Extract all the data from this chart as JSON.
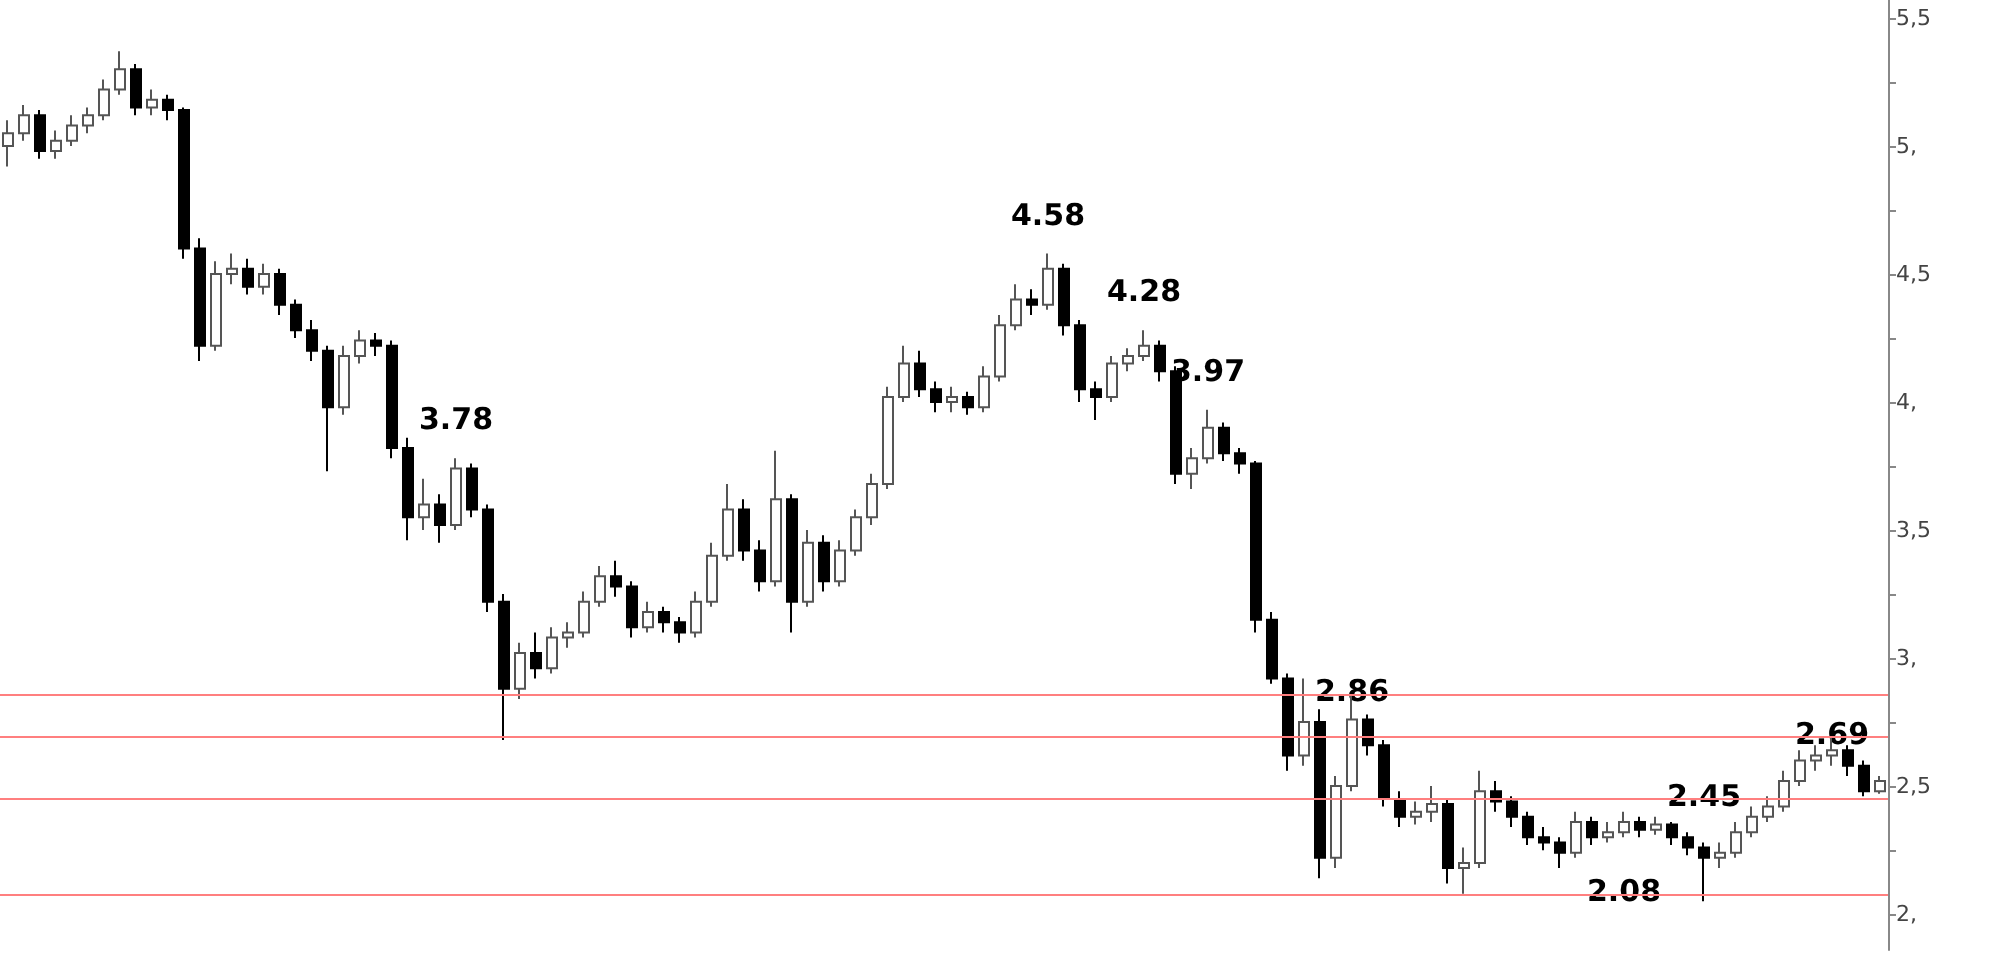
{
  "chart_data": {
    "type": "candlestick",
    "colors": [
      "#ffffff",
      "#ffffff",
      "#000000",
      "#ffffff",
      "#ffffff",
      "#ffffff",
      "#ffffff",
      "#ffffff",
      "#000000",
      "#ffffff",
      "#000000",
      "#000000",
      "#000000",
      "#ffffff",
      "#ffffff",
      "#000000",
      "#ffffff",
      "#000000",
      "#000000",
      "#000000",
      "#000000",
      "#ffffff",
      "#ffffff",
      "#000000",
      "#000000",
      "#000000",
      "#ffffff",
      "#000000",
      "#ffffff",
      "#000000",
      "#000000",
      "#000000",
      "#ffffff",
      "#000000",
      "#ffffff",
      "#ffffff",
      "#ffffff",
      "#ffffff",
      "#000000",
      "#000000",
      "#ffffff",
      "#000000",
      "#000000",
      "#ffffff",
      "#ffffff",
      "#ffffff",
      "#000000",
      "#000000",
      "#ffffff",
      "#000000",
      "#ffffff",
      "#000000",
      "#ffffff",
      "#ffffff",
      "#ffffff",
      "#ffffff",
      "#ffffff",
      "#000000",
      "#000000",
      "#ffffff",
      "#000000",
      "#ffffff",
      "#ffffff",
      "#ffffff",
      "#000000",
      "#ffffff",
      "#000000",
      "#000000",
      "#000000",
      "#ffffff",
      "#ffffff",
      "#ffffff",
      "#000000",
      "#000000",
      "#ffffff",
      "#ffffff",
      "#000000",
      "#000000",
      "#000000",
      "#000000",
      "#000000",
      "#ffffff",
      "#000000",
      "#ffffff",
      "#ffffff",
      "#000000",
      "#000000",
      "#000000",
      "#ffffff",
      "#ffffff",
      "#000000",
      "#ffffff",
      "#ffffff",
      "#000000",
      "#000000",
      "#000000",
      "#000000",
      "#000000",
      "#ffffff",
      "#000000",
      "#ffffff",
      "#ffffff",
      "#000000",
      "#ffffff",
      "#000000",
      "#000000",
      "#000000",
      "#ffffff",
      "#ffffff",
      "#ffffff",
      "#ffffff",
      "#ffffff",
      "#ffffff",
      "#ffffff",
      "#ffffff",
      "#000000",
      "#000000",
      "#ffffff"
    ],
    "categories": [
      null,
      null,
      null,
      null,
      null,
      null,
      null,
      null,
      null,
      null,
      null,
      null,
      null,
      null,
      null,
      null,
      null,
      null,
      null,
      null,
      null,
      null,
      null,
      null,
      null,
      null,
      null,
      null,
      null,
      null,
      null,
      null,
      null,
      null,
      null,
      null,
      null,
      null,
      null,
      null,
      null,
      null,
      null,
      null,
      null,
      null,
      null,
      null,
      null,
      null,
      null,
      null,
      null,
      null,
      null,
      null,
      null,
      null,
      null,
      null,
      null,
      null,
      null,
      null,
      null,
      null,
      null,
      null,
      null,
      null,
      null,
      null,
      null,
      null,
      null,
      null,
      null,
      null,
      null,
      null,
      null,
      null,
      null,
      null,
      null,
      null,
      null,
      null,
      null,
      null,
      null,
      null,
      null,
      null,
      null,
      null,
      null,
      null,
      null,
      null,
      null,
      null,
      null,
      null,
      null,
      null,
      null,
      null,
      null,
      null,
      null,
      null,
      null,
      null,
      null,
      null,
      null,
      null
    ],
    "ohlc": [
      [
        5.0,
        5.1,
        4.92,
        5.05
      ],
      [
        5.05,
        5.16,
        5.02,
        5.12
      ],
      [
        5.12,
        5.14,
        4.95,
        4.98
      ],
      [
        4.98,
        5.06,
        4.95,
        5.02
      ],
      [
        5.02,
        5.12,
        5.0,
        5.08
      ],
      [
        5.08,
        5.15,
        5.05,
        5.12
      ],
      [
        5.12,
        5.26,
        5.1,
        5.22
      ],
      [
        5.22,
        5.37,
        5.2,
        5.3
      ],
      [
        5.3,
        5.32,
        5.12,
        5.15
      ],
      [
        5.15,
        5.22,
        5.12,
        5.18
      ],
      [
        5.18,
        5.2,
        5.1,
        5.14
      ],
      [
        5.14,
        5.15,
        4.56,
        4.6
      ],
      [
        4.6,
        4.64,
        4.16,
        4.22
      ],
      [
        4.22,
        4.55,
        4.2,
        4.5
      ],
      [
        4.5,
        4.58,
        4.46,
        4.52
      ],
      [
        4.52,
        4.56,
        4.42,
        4.45
      ],
      [
        4.45,
        4.54,
        4.42,
        4.5
      ],
      [
        4.5,
        4.52,
        4.34,
        4.38
      ],
      [
        4.38,
        4.4,
        4.25,
        4.28
      ],
      [
        4.28,
        4.32,
        4.16,
        4.2
      ],
      [
        4.2,
        4.22,
        3.73,
        3.98
      ],
      [
        3.98,
        4.22,
        3.95,
        4.18
      ],
      [
        4.18,
        4.28,
        4.15,
        4.24
      ],
      [
        4.24,
        4.27,
        4.18,
        4.22
      ],
      [
        4.22,
        4.24,
        3.78,
        3.82
      ],
      [
        3.82,
        3.86,
        3.46,
        3.55
      ],
      [
        3.55,
        3.7,
        3.5,
        3.6
      ],
      [
        3.6,
        3.64,
        3.45,
        3.52
      ],
      [
        3.52,
        3.78,
        3.5,
        3.74
      ],
      [
        3.74,
        3.76,
        3.55,
        3.58
      ],
      [
        3.58,
        3.6,
        3.18,
        3.22
      ],
      [
        3.22,
        3.25,
        2.68,
        2.88
      ],
      [
        2.88,
        3.06,
        2.84,
        3.02
      ],
      [
        3.02,
        3.1,
        2.92,
        2.96
      ],
      [
        2.96,
        3.12,
        2.94,
        3.08
      ],
      [
        3.08,
        3.14,
        3.04,
        3.1
      ],
      [
        3.1,
        3.26,
        3.08,
        3.22
      ],
      [
        3.22,
        3.36,
        3.2,
        3.32
      ],
      [
        3.32,
        3.38,
        3.24,
        3.28
      ],
      [
        3.28,
        3.3,
        3.08,
        3.12
      ],
      [
        3.12,
        3.22,
        3.1,
        3.18
      ],
      [
        3.18,
        3.2,
        3.1,
        3.14
      ],
      [
        3.14,
        3.16,
        3.06,
        3.1
      ],
      [
        3.1,
        3.26,
        3.08,
        3.22
      ],
      [
        3.22,
        3.45,
        3.2,
        3.4
      ],
      [
        3.4,
        3.68,
        3.38,
        3.58
      ],
      [
        3.58,
        3.62,
        3.38,
        3.42
      ],
      [
        3.42,
        3.46,
        3.26,
        3.3
      ],
      [
        3.3,
        3.81,
        3.28,
        3.62
      ],
      [
        3.62,
        3.64,
        3.1,
        3.22
      ],
      [
        3.22,
        3.5,
        3.2,
        3.45
      ],
      [
        3.45,
        3.48,
        3.26,
        3.3
      ],
      [
        3.3,
        3.46,
        3.28,
        3.42
      ],
      [
        3.42,
        3.58,
        3.4,
        3.55
      ],
      [
        3.55,
        3.72,
        3.52,
        3.68
      ],
      [
        3.68,
        4.06,
        3.66,
        4.02
      ],
      [
        4.02,
        4.22,
        4.0,
        4.15
      ],
      [
        4.15,
        4.2,
        4.02,
        4.05
      ],
      [
        4.05,
        4.08,
        3.96,
        4.0
      ],
      [
        4.0,
        4.06,
        3.96,
        4.02
      ],
      [
        4.02,
        4.04,
        3.95,
        3.98
      ],
      [
        3.98,
        4.14,
        3.96,
        4.1
      ],
      [
        4.1,
        4.34,
        4.08,
        4.3
      ],
      [
        4.3,
        4.46,
        4.28,
        4.4
      ],
      [
        4.4,
        4.44,
        4.34,
        4.38
      ],
      [
        4.38,
        4.58,
        4.36,
        4.52
      ],
      [
        4.52,
        4.54,
        4.26,
        4.3
      ],
      [
        4.3,
        4.32,
        4.0,
        4.05
      ],
      [
        4.05,
        4.08,
        3.93,
        4.02
      ],
      [
        4.02,
        4.18,
        4.0,
        4.15
      ],
      [
        4.15,
        4.21,
        4.12,
        4.18
      ],
      [
        4.18,
        4.28,
        4.16,
        4.22
      ],
      [
        4.22,
        4.24,
        4.08,
        4.12
      ],
      [
        4.12,
        4.14,
        3.68,
        3.72
      ],
      [
        3.72,
        3.82,
        3.66,
        3.78
      ],
      [
        3.78,
        3.97,
        3.76,
        3.9
      ],
      [
        3.9,
        3.92,
        3.77,
        3.8
      ],
      [
        3.8,
        3.82,
        3.72,
        3.76
      ],
      [
        3.76,
        3.77,
        3.1,
        3.15
      ],
      [
        3.15,
        3.18,
        2.9,
        2.92
      ],
      [
        2.92,
        2.94,
        2.56,
        2.62
      ],
      [
        2.62,
        2.92,
        2.58,
        2.75
      ],
      [
        2.75,
        2.8,
        2.14,
        2.22
      ],
      [
        2.22,
        2.54,
        2.18,
        2.5
      ],
      [
        2.5,
        2.86,
        2.48,
        2.76
      ],
      [
        2.76,
        2.78,
        2.62,
        2.66
      ],
      [
        2.66,
        2.68,
        2.42,
        2.45
      ],
      [
        2.45,
        2.48,
        2.34,
        2.38
      ],
      [
        2.38,
        2.44,
        2.35,
        2.4
      ],
      [
        2.4,
        2.5,
        2.36,
        2.43
      ],
      [
        2.43,
        2.45,
        2.12,
        2.18
      ],
      [
        2.18,
        2.26,
        2.08,
        2.2
      ],
      [
        2.2,
        2.56,
        2.18,
        2.48
      ],
      [
        2.48,
        2.52,
        2.4,
        2.44
      ],
      [
        2.44,
        2.46,
        2.34,
        2.38
      ],
      [
        2.38,
        2.4,
        2.27,
        2.3
      ],
      [
        2.3,
        2.34,
        2.25,
        2.28
      ],
      [
        2.28,
        2.3,
        2.18,
        2.24
      ],
      [
        2.24,
        2.4,
        2.22,
        2.36
      ],
      [
        2.36,
        2.38,
        2.27,
        2.3
      ],
      [
        2.3,
        2.36,
        2.28,
        2.32
      ],
      [
        2.32,
        2.4,
        2.3,
        2.36
      ],
      [
        2.36,
        2.38,
        2.3,
        2.33
      ],
      [
        2.33,
        2.38,
        2.31,
        2.35
      ],
      [
        2.35,
        2.36,
        2.27,
        2.3
      ],
      [
        2.3,
        2.32,
        2.23,
        2.26
      ],
      [
        2.26,
        2.28,
        2.05,
        2.22
      ],
      [
        2.22,
        2.28,
        2.18,
        2.24
      ],
      [
        2.24,
        2.36,
        2.22,
        2.32
      ],
      [
        2.32,
        2.42,
        2.3,
        2.38
      ],
      [
        2.38,
        2.46,
        2.36,
        2.42
      ],
      [
        2.42,
        2.56,
        2.4,
        2.52
      ],
      [
        2.52,
        2.64,
        2.5,
        2.6
      ],
      [
        2.6,
        2.66,
        2.56,
        2.62
      ],
      [
        2.62,
        2.69,
        2.58,
        2.64
      ],
      [
        2.64,
        2.66,
        2.54,
        2.58
      ],
      [
        2.58,
        2.6,
        2.46,
        2.48
      ],
      [
        2.48,
        2.54,
        2.47,
        2.52
      ]
    ],
    "ylim": [
      1.86,
      5.57
    ],
    "yticks": [
      {
        "value": 2,
        "label": "2,"
      },
      {
        "value": 2.25,
        "label": null
      },
      {
        "value": 2.5,
        "label": "2,5"
      },
      {
        "value": 2.75,
        "label": null
      },
      {
        "value": 3,
        "label": "3,"
      },
      {
        "value": 3.25,
        "label": null
      },
      {
        "value": 3.5,
        "label": "3,5"
      },
      {
        "value": 3.75,
        "label": null
      },
      {
        "value": 4,
        "label": "4,"
      },
      {
        "value": 4.25,
        "label": null
      },
      {
        "value": 4.5,
        "label": "4,5"
      },
      {
        "value": 4.75,
        "label": null
      },
      {
        "value": 5,
        "label": "5,"
      },
      {
        "value": 5.25,
        "label": null
      },
      {
        "value": 5.5,
        "label": "5,5"
      }
    ],
    "tick_labels": "y",
    "grid": false,
    "ref_lines": [
      {
        "axis": "y",
        "value": 2.86,
        "label": "2.86",
        "color": "#ff7f7f"
      },
      {
        "axis": "y",
        "value": 2.69,
        "label": "2.69",
        "color": "#ff7f7f"
      },
      {
        "axis": "y",
        "value": 2.45,
        "label": "2.45",
        "color": "#ff7f7f"
      },
      {
        "axis": "y",
        "value": 2.08,
        "label": "2.08",
        "color": "#ff7f7f"
      }
    ],
    "annotations": [
      {
        "text": "4.58",
        "y": 4.58
      },
      {
        "text": "4.28",
        "y": 4.28
      },
      {
        "text": "3.97",
        "y": 3.97
      },
      {
        "text": "3.78",
        "y": 3.78
      }
    ]
  }
}
